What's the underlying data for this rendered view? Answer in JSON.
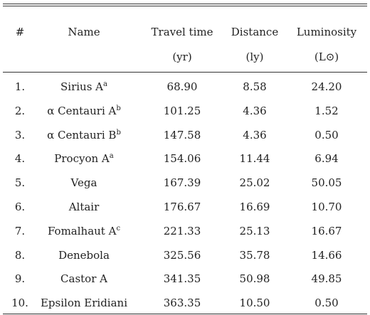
{
  "table": {
    "columns": [
      "#",
      "Name",
      "Travel time",
      "Distance",
      "Luminosity"
    ],
    "units": [
      {
        "col": 2,
        "text": "(yr)"
      },
      {
        "col": 3,
        "text": "(ly)"
      },
      {
        "col": 4,
        "text": "(L⊙)"
      }
    ],
    "rows": [
      [
        "1.",
        {
          "name": "Sirius A",
          "note": "a"
        },
        "68.90",
        "8.58",
        "24.20"
      ],
      [
        "2.",
        {
          "name": "α Centauri A",
          "note": "b"
        },
        "101.25",
        "4.36",
        "1.52"
      ],
      [
        "3.",
        {
          "name": "α Centauri B",
          "note": "b"
        },
        "147.58",
        "4.36",
        "0.50"
      ],
      [
        "4.",
        {
          "name": "Procyon A",
          "note": "a"
        },
        "154.06",
        "11.44",
        "6.94"
      ],
      [
        "5.",
        {
          "name": "Vega"
        },
        "167.39",
        "25.02",
        "50.05"
      ],
      [
        "6.",
        {
          "name": "Altair"
        },
        "176.67",
        "16.69",
        "10.70"
      ],
      [
        "7.",
        {
          "name": "Fomalhaut A",
          "note": "c"
        },
        "221.33",
        "25.13",
        "16.67"
      ],
      [
        "8.",
        {
          "name": "Denebola"
        },
        "325.56",
        "35.78",
        "14.66"
      ],
      [
        "9.",
        {
          "name": "Castor A"
        },
        "341.35",
        "50.98",
        "49.85"
      ],
      [
        "10.",
        {
          "name": "Epsilon Eridiani"
        },
        "363.35",
        "10.50",
        "0.50"
      ]
    ]
  }
}
